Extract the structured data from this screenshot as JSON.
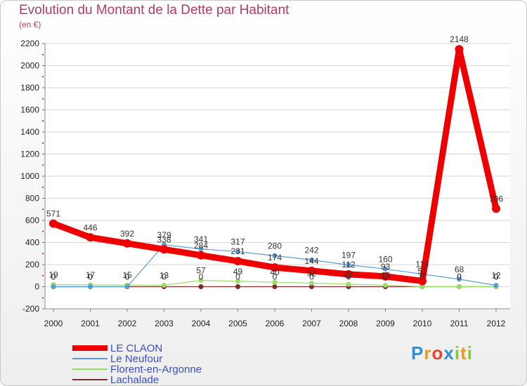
{
  "chart_data": {
    "type": "line",
    "title": "Evolution du Montant de la Dette par Habitant",
    "ylabel": "(en €)",
    "xlabel": "",
    "categories": [
      "2000",
      "2001",
      "2002",
      "2003",
      "2004",
      "2005",
      "2006",
      "2007",
      "2008",
      "2009",
      "2010",
      "2011",
      "2012"
    ],
    "ylim": [
      -200,
      2200
    ],
    "yticks": [
      -200,
      0,
      200,
      400,
      600,
      800,
      1000,
      1200,
      1400,
      1600,
      1800,
      2000,
      2200
    ],
    "series": [
      {
        "name": "LE CLAON",
        "color": "#ee0000",
        "values": [
          571,
          446,
          392,
          338,
          284,
          231,
          174,
          144,
          112,
          93,
          51,
          2148,
          706
        ]
      },
      {
        "name": "Le Neufour",
        "color": "#5b9bd5",
        "values": [
          0,
          0,
          0,
          379,
          341,
          317,
          280,
          242,
          197,
          160,
          114,
          68,
          12
        ]
      },
      {
        "name": "Florent-en-Argonne",
        "color": "#99dd66",
        "values": [
          19,
          17,
          15,
          13,
          57,
          49,
          40,
          32,
          22,
          13,
          0,
          0,
          0
        ]
      },
      {
        "name": "Lachalade",
        "color": "#7a2a2a",
        "values": [
          0,
          0,
          0,
          0,
          0,
          0,
          0,
          0,
          0,
          0,
          0,
          0,
          0
        ]
      }
    ]
  },
  "brand": {
    "letters": [
      {
        "ch": "P",
        "color": "#2f8fd8"
      },
      {
        "ch": "r",
        "color": "#f39a1e"
      },
      {
        "ch": "o",
        "color": "#e8452e"
      },
      {
        "ch": "x",
        "color": "#2f8fd8"
      },
      {
        "ch": "i",
        "color": "#8cc63f"
      },
      {
        "ch": "t",
        "color": "#f39a1e"
      },
      {
        "ch": "i",
        "color": "#8cc63f"
      }
    ]
  }
}
